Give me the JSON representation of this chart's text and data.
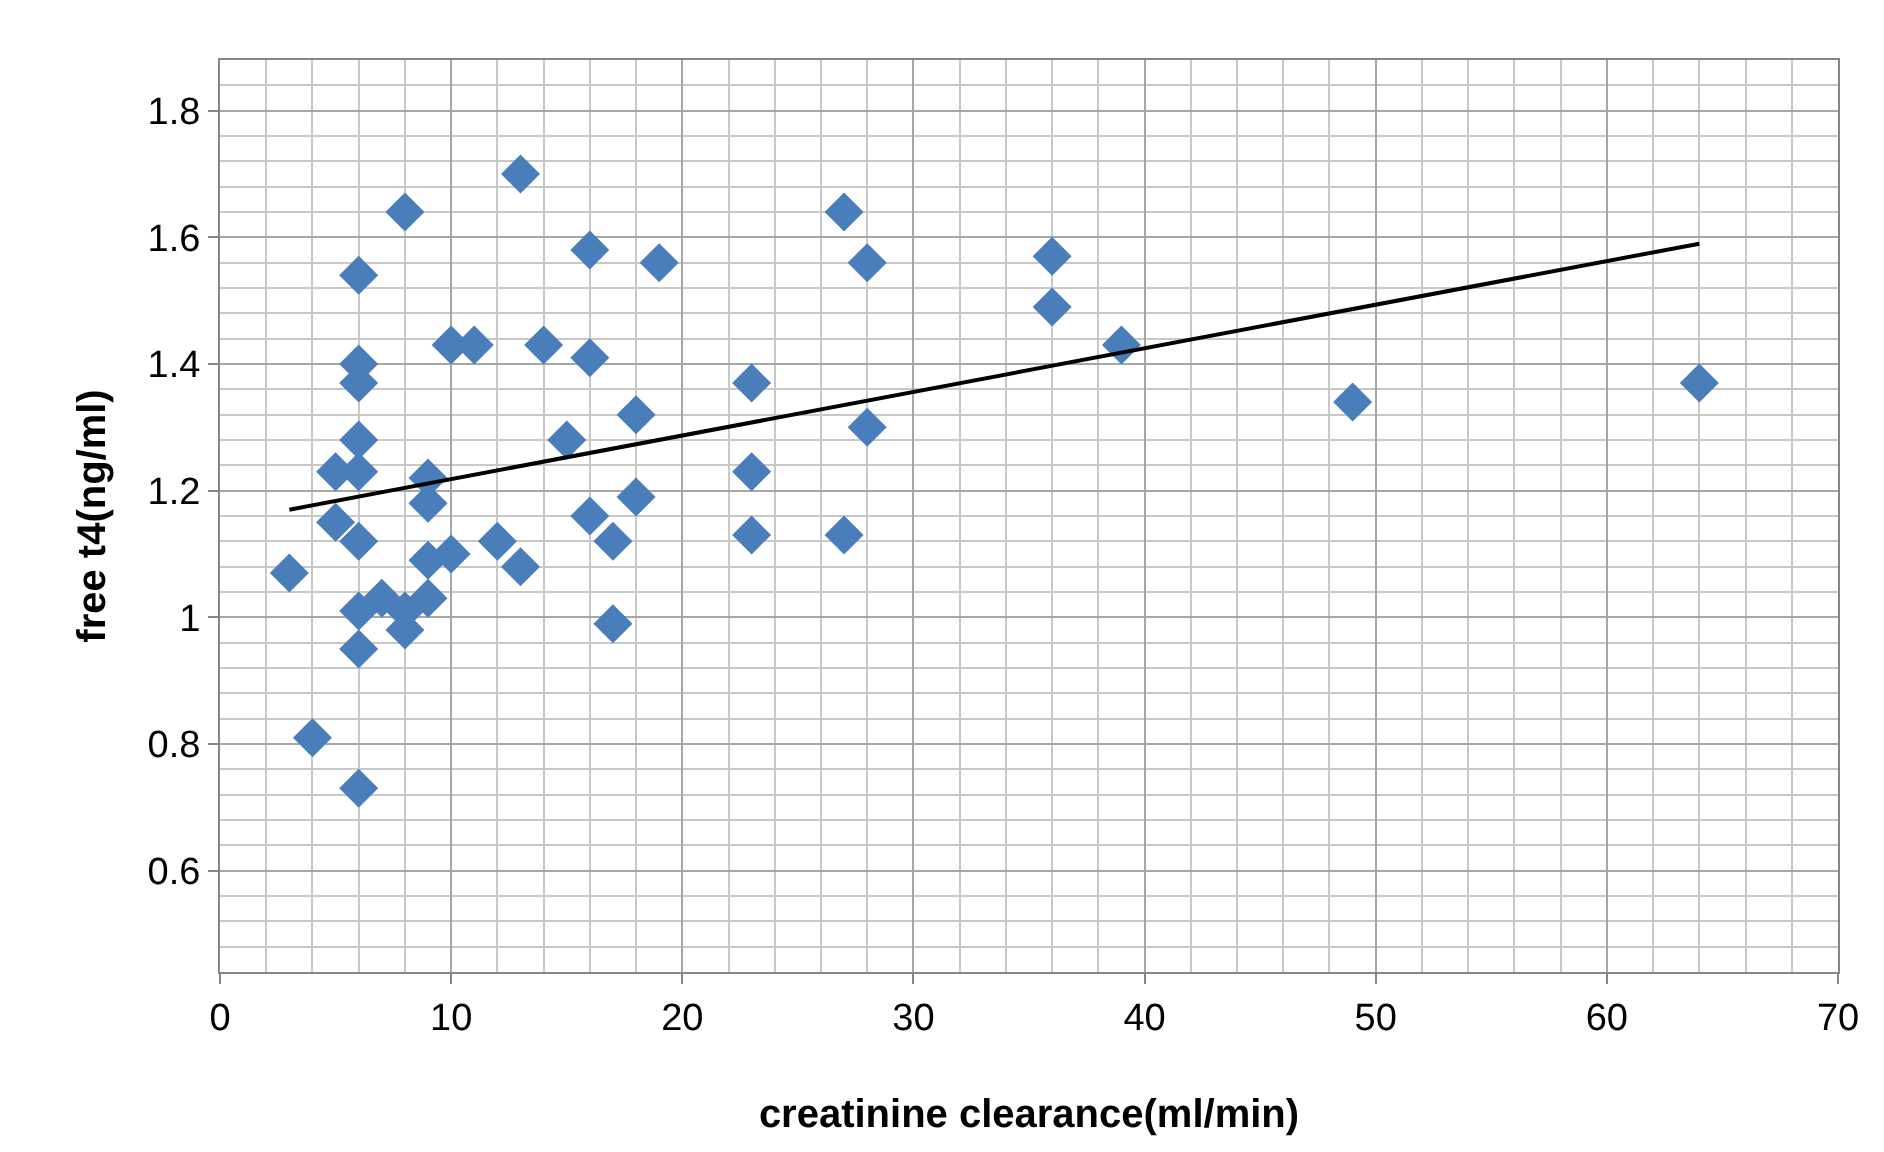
{
  "chart_data": {
    "type": "scatter",
    "xlabel": "creatinine clearance(ml/min)",
    "ylabel": "free t4(ng/ml)",
    "xlim": [
      0,
      70
    ],
    "xticks": [
      0,
      10,
      20,
      30,
      40,
      50,
      60,
      70
    ],
    "ylim": [
      0.44,
      1.88
    ],
    "yticks": [
      0.6,
      0.8,
      1,
      1.2,
      1.4,
      1.6,
      1.8
    ],
    "grid": true,
    "marker": "diamond",
    "series": [
      {
        "color": "#4a7ebb",
        "x": [
          3,
          4,
          5,
          5,
          6,
          6,
          6,
          6,
          6,
          6,
          6,
          6,
          6,
          7,
          8,
          8,
          8,
          9,
          9,
          9,
          9,
          10,
          10,
          11,
          12,
          13,
          13,
          14,
          15,
          16,
          16,
          16,
          17,
          17,
          18,
          18,
          19,
          23,
          23,
          23,
          27,
          27,
          28,
          28,
          36,
          36,
          39,
          49,
          64
        ],
        "values": [
          1.07,
          0.81,
          1.23,
          1.15,
          1.54,
          1.4,
          1.37,
          1.28,
          1.23,
          1.12,
          0.95,
          0.73,
          1.01,
          1.03,
          1.64,
          1.01,
          0.98,
          1.22,
          1.18,
          1.09,
          1.03,
          1.43,
          1.1,
          1.43,
          1.12,
          1.7,
          1.08,
          1.43,
          1.28,
          1.58,
          1.41,
          1.16,
          1.12,
          0.99,
          1.32,
          1.19,
          1.56,
          1.37,
          1.23,
          1.13,
          1.64,
          1.13,
          1.56,
          1.3,
          1.57,
          1.49,
          1.43,
          1.34,
          1.37
        ]
      },
      {
        "type": "line",
        "color": "#000000",
        "marker": "none",
        "x": [
          3,
          64
        ],
        "values": [
          1.17,
          1.59
        ]
      }
    ]
  }
}
